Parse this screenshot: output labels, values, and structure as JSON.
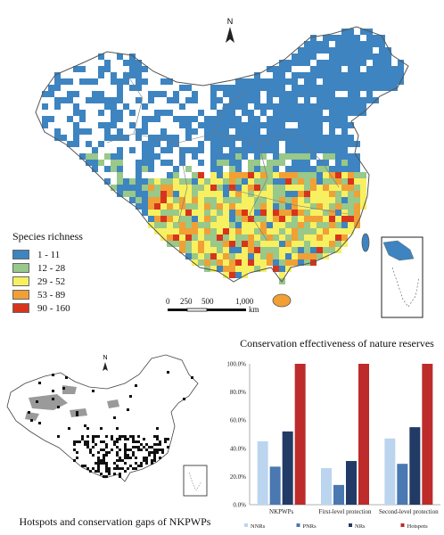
{
  "top_map": {
    "north_label": "N",
    "legend": {
      "title": "Species richness",
      "items": [
        {
          "label": "1 - 11",
          "color": "#3d84c0"
        },
        {
          "label": "12 - 28",
          "color": "#98c88a"
        },
        {
          "label": "29 - 52",
          "color": "#f7f060"
        },
        {
          "label": "53 - 89",
          "color": "#f0a035"
        },
        {
          "label": "90 - 160",
          "color": "#d8341c"
        }
      ]
    },
    "scale": {
      "ticks": [
        "0",
        "250",
        "500",
        "1,000"
      ],
      "unit": "km"
    }
  },
  "bottom_map": {
    "north_label": "N",
    "caption": "Hotspots and conservation gaps of NKPWPs"
  },
  "chart_data": {
    "type": "bar",
    "title": "Conservation effectiveness of nature reserves",
    "categories": [
      "NKPWPs",
      "First-level protection",
      "Second-level protection"
    ],
    "series": [
      {
        "name": "NNRs",
        "color": "#bcd5ee",
        "values": [
          45,
          26,
          47
        ]
      },
      {
        "name": "PNRs",
        "color": "#4a78b0",
        "values": [
          27,
          14,
          29
        ]
      },
      {
        "name": "NRs",
        "color": "#223a66",
        "values": [
          52,
          31,
          55
        ]
      },
      {
        "name": "Hotspots",
        "color": "#be2b2b",
        "values": [
          100,
          100,
          100
        ]
      }
    ],
    "yticks": [
      "0.0%",
      "20.0%",
      "40.0%",
      "60.0%",
      "80.0%",
      "100.0%"
    ],
    "ylim": [
      0,
      100
    ],
    "grid": false,
    "legend_position": "bottom"
  }
}
